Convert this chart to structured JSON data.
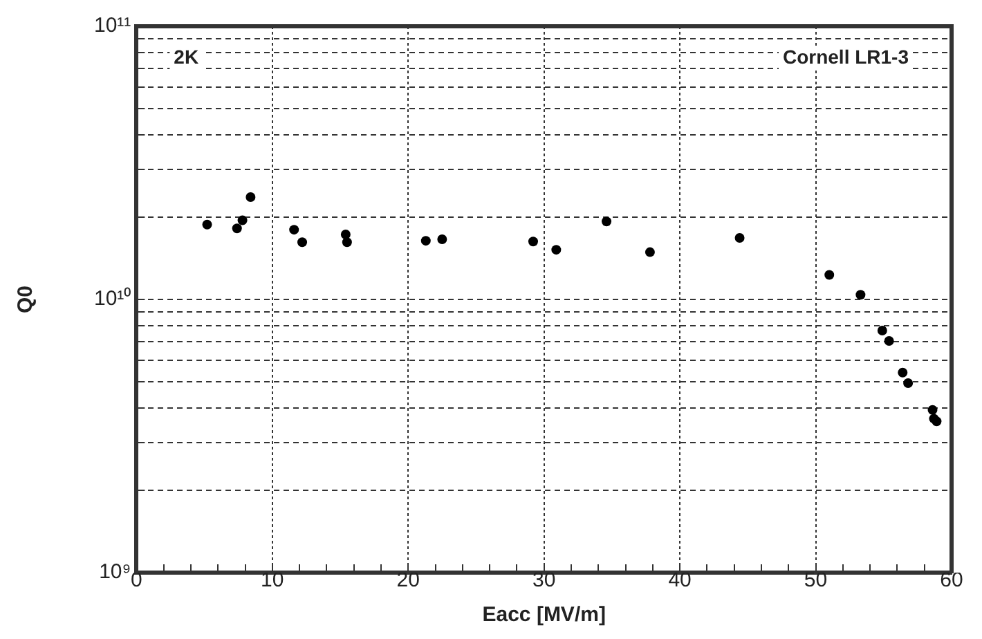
{
  "chart_data": {
    "type": "scatter",
    "xlabel": "Eacc [MV/m]",
    "ylabel": "Q0",
    "annotations": [
      "2K",
      "Cornell LR1-3"
    ],
    "x": [
      5.2,
      7.4,
      7.8,
      8.4,
      11.6,
      12.2,
      15.4,
      15.5,
      21.3,
      22.5,
      29.2,
      30.9,
      34.6,
      37.8,
      44.4,
      51.0,
      53.3,
      54.9,
      55.4,
      56.4,
      56.8,
      58.6,
      58.7,
      58.9
    ],
    "series": [
      {
        "color": "#000000",
        "values": [
          18800000000.0,
          18200000000.0,
          19500000000.0,
          23700000000.0,
          18000000000.0,
          16200000000.0,
          17300000000.0,
          16200000000.0,
          16400000000.0,
          16600000000.0,
          16300000000.0,
          15200000000.0,
          19300000000.0,
          14900000000.0,
          16800000000.0,
          12300000000.0,
          10400000000.0,
          7690000000.0,
          7050000000.0,
          5400000000.0,
          4940000000.0,
          3940000000.0,
          3660000000.0,
          3580000000.0
        ]
      }
    ],
    "xlim": [
      0,
      60
    ],
    "xticks": [
      0,
      {
        "value": 2,
        "label": null
      },
      {
        "value": 4,
        "label": null
      },
      {
        "value": 6,
        "label": null
      },
      {
        "value": 8,
        "label": null
      },
      10,
      {
        "value": 12,
        "label": null
      },
      {
        "value": 14,
        "label": null
      },
      {
        "value": 16,
        "label": null
      },
      {
        "value": 18,
        "label": null
      },
      20,
      {
        "value": 22,
        "label": null
      },
      {
        "value": 24,
        "label": null
      },
      {
        "value": 26,
        "label": null
      },
      {
        "value": 28,
        "label": null
      },
      30,
      {
        "value": 32,
        "label": null
      },
      {
        "value": 34,
        "label": null
      },
      {
        "value": 36,
        "label": null
      },
      {
        "value": 38,
        "label": null
      },
      40,
      {
        "value": 42,
        "label": null
      },
      {
        "value": 44,
        "label": null
      },
      {
        "value": 46,
        "label": null
      },
      {
        "value": 48,
        "label": null
      },
      50,
      {
        "value": 52,
        "label": null
      },
      {
        "value": 54,
        "label": null
      },
      {
        "value": 56,
        "label": null
      },
      {
        "value": 58,
        "label": null
      },
      60
    ],
    "ylim": [
      1000000000.0,
      100000000000.0
    ],
    "log": "y",
    "yticks": [
      {
        "value": 1000000000.0,
        "label": "10⁹"
      },
      {
        "value": 2000000000.0,
        "label": null
      },
      {
        "value": 3000000000.0,
        "label": null
      },
      {
        "value": 4000000000.0,
        "label": null
      },
      {
        "value": 5000000000.0,
        "label": null
      },
      {
        "value": 6000000000.0,
        "label": null
      },
      {
        "value": 7000000000.0,
        "label": null
      },
      {
        "value": 8000000000.0,
        "label": null
      },
      {
        "value": 9000000000.0,
        "label": null
      },
      {
        "value": 10000000000.0,
        "label": "10¹⁰"
      },
      {
        "value": 20000000000.0,
        "label": null
      },
      {
        "value": 30000000000.0,
        "label": null
      },
      {
        "value": 40000000000.0,
        "label": null
      },
      {
        "value": 50000000000.0,
        "label": null
      },
      {
        "value": 60000000000.0,
        "label": null
      },
      {
        "value": 70000000000.0,
        "label": null
      },
      {
        "value": 80000000000.0,
        "label": null
      },
      {
        "value": 90000000000.0,
        "label": null
      },
      {
        "value": 100000000000.0,
        "label": "10¹¹"
      }
    ],
    "grid": true,
    "legend": false,
    "marker": "circle"
  }
}
